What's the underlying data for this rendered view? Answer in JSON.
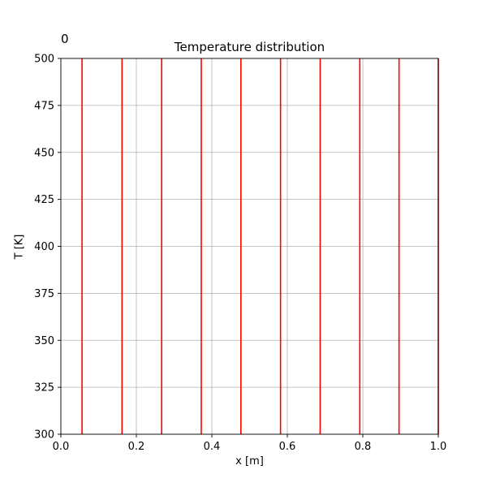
{
  "chart_data": {
    "type": "line",
    "corner_label": "0",
    "title": "Temperature distribution",
    "xlabel": "x [m]",
    "ylabel": "T [K]",
    "xlim": [
      0.0,
      1.0
    ],
    "ylim": [
      300,
      500
    ],
    "xticks": [
      0.0,
      0.2,
      0.4,
      0.6,
      0.8,
      1.0
    ],
    "xtick_labels": [
      "0.0",
      "0.2",
      "0.4",
      "0.6",
      "0.8",
      "1.0"
    ],
    "yticks": [
      300,
      325,
      350,
      375,
      400,
      425,
      450,
      475,
      500
    ],
    "ytick_labels": [
      "300",
      "325",
      "350",
      "375",
      "400",
      "425",
      "450",
      "475",
      "500"
    ],
    "grid": true,
    "series_color": "#ff0000",
    "series": [
      {
        "x": [
          0.056,
          0.056
        ],
        "y": [
          300,
          500
        ]
      },
      {
        "x": [
          0.162,
          0.162
        ],
        "y": [
          300,
          500
        ]
      },
      {
        "x": [
          0.267,
          0.267
        ],
        "y": [
          300,
          500
        ]
      },
      {
        "x": [
          0.372,
          0.372
        ],
        "y": [
          300,
          500
        ]
      },
      {
        "x": [
          0.477,
          0.477
        ],
        "y": [
          300,
          500
        ]
      },
      {
        "x": [
          0.582,
          0.582
        ],
        "y": [
          300,
          500
        ]
      },
      {
        "x": [
          0.687,
          0.687
        ],
        "y": [
          300,
          500
        ]
      },
      {
        "x": [
          0.792,
          0.792
        ],
        "y": [
          300,
          500
        ]
      },
      {
        "x": [
          0.896,
          0.896
        ],
        "y": [
          300,
          500
        ]
      },
      {
        "x": [
          1.0,
          1.0
        ],
        "y": [
          300,
          500
        ]
      }
    ]
  }
}
